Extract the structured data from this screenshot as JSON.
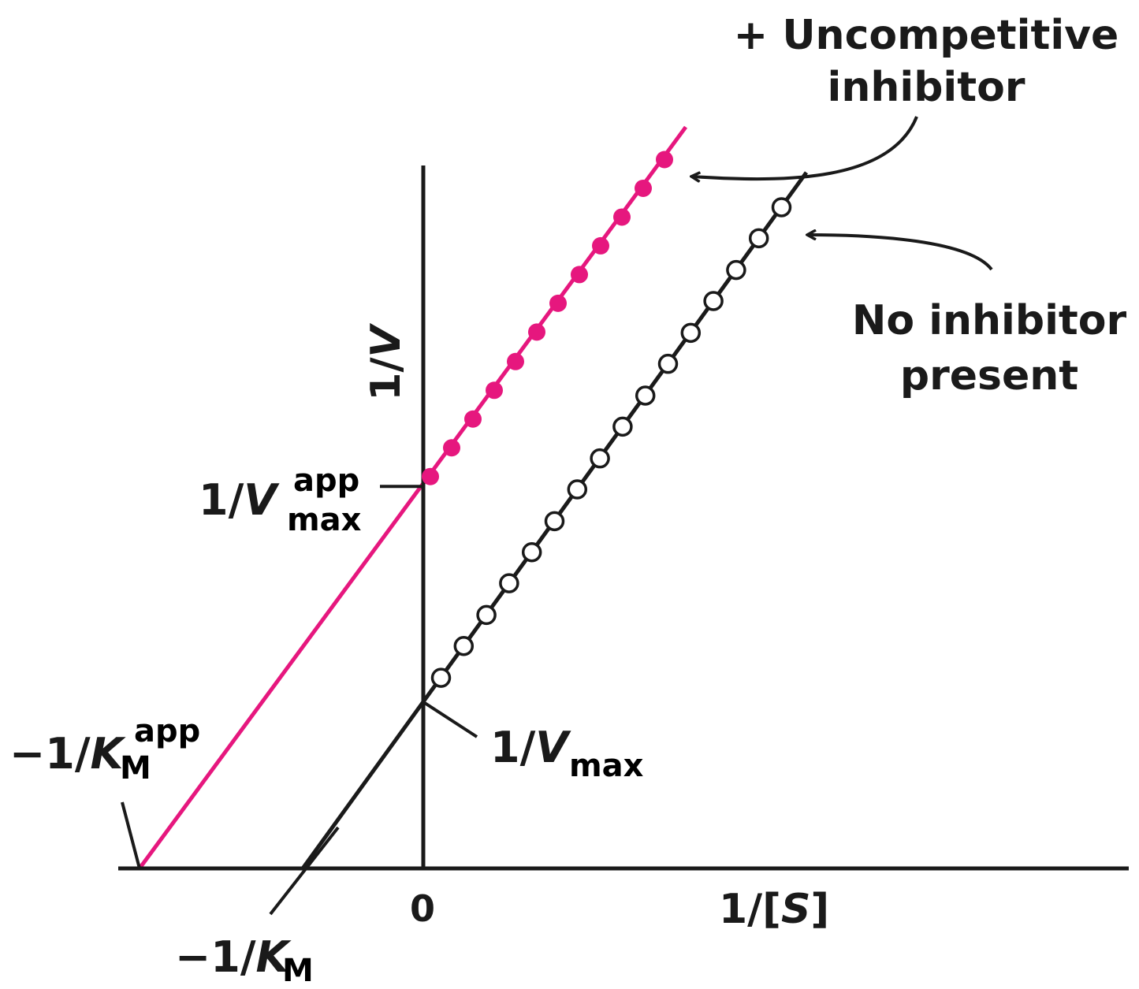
{
  "chart_data": {
    "type": "line",
    "title": "",
    "xlabel": "1/[S]",
    "ylabel": "1/V",
    "x_origin_label": "0",
    "xlim": [
      -4,
      10
    ],
    "ylim": [
      0,
      11
    ],
    "grid": false,
    "legend": "none",
    "intercepts": {
      "minus_one_over_km_app": {
        "base": "−1/K",
        "sub": "M",
        "sup": "app",
        "x": -4.0,
        "y": 0
      },
      "minus_one_over_km": {
        "base": "−1/K",
        "sub": "M",
        "x": -1.7,
        "y": 0
      },
      "one_over_vmax_app": {
        "base": "1/V",
        "sub": "max",
        "sup": "app",
        "x": 0,
        "y": 5.05
      },
      "one_over_vmax": {
        "base": "1/V",
        "sub": "max",
        "x": 0,
        "y": 2.2
      }
    },
    "series": [
      {
        "name": "+ Uncompetitive inhibitor",
        "label_lines": [
          "+ Uncompetitive",
          "inhibitor"
        ],
        "color": "#e6177e",
        "marker": "filled-circle",
        "line": {
          "x": [
            -4.0,
            3.7
          ],
          "y": [
            0,
            9.8
          ]
        },
        "points": {
          "x": [
            0.1,
            0.4,
            0.7,
            1.0,
            1.3,
            1.6,
            1.9,
            2.2,
            2.5,
            2.8,
            3.1,
            3.4
          ],
          "y": [
            5.18,
            5.56,
            5.94,
            6.32,
            6.7,
            7.09,
            7.47,
            7.85,
            8.23,
            8.61,
            8.99,
            9.37
          ]
        }
      },
      {
        "name": "No inhibitor present",
        "label_lines": [
          "No inhibitor",
          "present"
        ],
        "color": "#1a1a1a",
        "marker": "open-circle",
        "line": {
          "x": [
            -1.7,
            5.4
          ],
          "y": [
            0,
            9.2
          ]
        },
        "points": {
          "x": [
            0.25,
            0.57,
            0.89,
            1.21,
            1.53,
            1.85,
            2.17,
            2.49,
            2.81,
            3.13,
            3.45,
            3.77,
            4.09,
            4.41,
            4.73,
            5.05
          ],
          "y": [
            2.52,
            2.94,
            3.35,
            3.77,
            4.18,
            4.59,
            5.01,
            5.42,
            5.84,
            6.25,
            6.67,
            7.08,
            7.5,
            7.91,
            8.33,
            8.74
          ]
        }
      }
    ]
  }
}
